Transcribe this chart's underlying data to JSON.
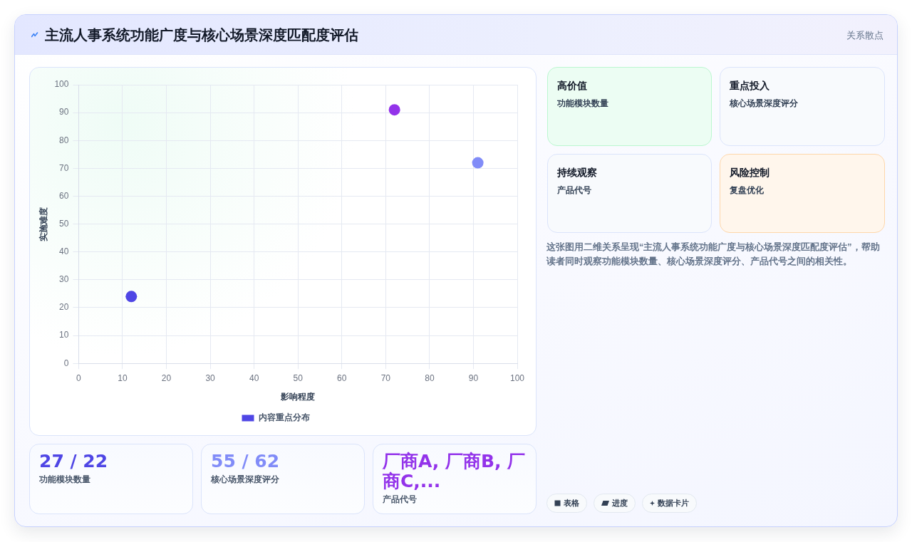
{
  "chart_data": [
    {
      "type": "other",
      "title": "主流人事系统功能广度与核心场景深度匹配度评估",
      "subtitle": "关系散点"
    },
    {
      "type": "scatter",
      "xlabel": "影响程度",
      "ylabel": "实施难度",
      "x": [
        12,
        72,
        91
      ],
      "series": [
        {
          "name": "内容重点分布",
          "color": "#4f46e5",
          "colors": [
            "#4f46e5",
            "#9333ea",
            "#818cf8"
          ],
          "values": [
            24,
            91,
            72
          ]
        }
      ],
      "xlim": [
        0,
        100
      ],
      "xticks": [
        0,
        10,
        20,
        30,
        40,
        50,
        60,
        70,
        80,
        90,
        100
      ],
      "ylim": [
        0,
        100
      ],
      "yticks": [
        0,
        10,
        20,
        30,
        40,
        50,
        60,
        70,
        80,
        90,
        100
      ],
      "grid": true,
      "legend": "bottom",
      "marker": "circle"
    },
    {
      "type": "other",
      "title": "高价值",
      "subtitle": "功能模块数量"
    },
    {
      "type": "other",
      "title": "重点投入",
      "subtitle": "核心场景深度评分"
    },
    {
      "type": "other",
      "title": "持续观察",
      "subtitle": "产品代号"
    },
    {
      "type": "other",
      "title": "风险控制",
      "subtitle": "复盘优化"
    },
    {
      "type": "other",
      "annotations": [
        "这张图用二维关系呈现“主流人事系统功能广度与核心场景深度匹配度评估”，帮助读者同时观察功能模块数量、核心场景深度评分、产品代号之间的相关性。"
      ]
    },
    {
      "type": "other",
      "title": "27 / 22",
      "subtitle": "功能模块数量"
    },
    {
      "type": "other",
      "title": "55 / 62",
      "subtitle": "核心场景深度评分"
    },
    {
      "type": "other",
      "title": "厂商A, 厂商B, 厂商C,...",
      "subtitle": "产品代号"
    },
    {
      "type": "other",
      "annotations": [
        "表格",
        "进度",
        "数据卡片"
      ]
    }
  ]
}
